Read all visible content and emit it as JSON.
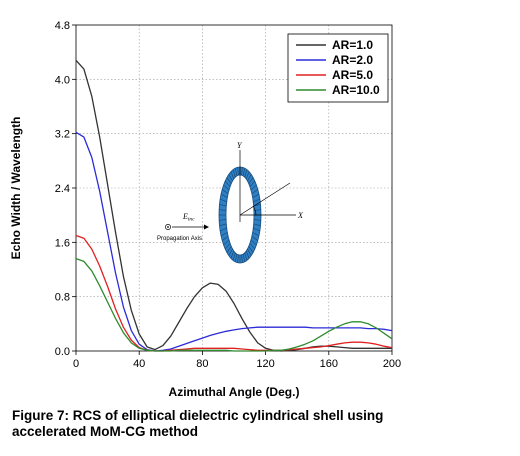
{
  "chart_data": {
    "type": "line",
    "title": "",
    "xlabel": "Azimuthal Angle (Deg.)",
    "ylabel": "Echo Width / Wavelength",
    "xlim": [
      0,
      200
    ],
    "ylim": [
      0,
      4.8
    ],
    "xticks": [
      0,
      40,
      80,
      120,
      160,
      200
    ],
    "yticks": [
      0.0,
      0.8,
      1.6,
      2.4,
      3.2,
      4.0,
      4.8
    ],
    "xtick_labels": [
      "0",
      "40",
      "80",
      "120",
      "160",
      "200"
    ],
    "ytick_labels": [
      "0.0",
      "0.8",
      "1.6",
      "2.4",
      "3.2",
      "4.0",
      "4.8"
    ],
    "grid": "dotted",
    "legend_position": "top-right",
    "x": [
      0,
      5,
      10,
      15,
      20,
      25,
      30,
      35,
      40,
      45,
      50,
      55,
      60,
      65,
      70,
      75,
      80,
      85,
      90,
      95,
      100,
      105,
      110,
      115,
      120,
      125,
      130,
      135,
      140,
      145,
      150,
      155,
      160,
      165,
      170,
      175,
      180,
      185,
      190,
      195,
      200
    ],
    "series": [
      {
        "name": "AR=1.0",
        "color": "#333333",
        "values": [
          4.28,
          4.15,
          3.75,
          3.15,
          2.45,
          1.75,
          1.1,
          0.6,
          0.25,
          0.06,
          0.02,
          0.08,
          0.22,
          0.42,
          0.62,
          0.8,
          0.93,
          1.0,
          0.98,
          0.88,
          0.7,
          0.48,
          0.28,
          0.12,
          0.04,
          0.01,
          0.0,
          0.01,
          0.02,
          0.04,
          0.06,
          0.07,
          0.07,
          0.06,
          0.05,
          0.04,
          0.04,
          0.04,
          0.04,
          0.04,
          0.04
        ]
      },
      {
        "name": "AR=2.0",
        "color": "#2b2bd9",
        "values": [
          3.22,
          3.15,
          2.85,
          2.35,
          1.75,
          1.15,
          0.65,
          0.3,
          0.1,
          0.02,
          0.0,
          0.01,
          0.03,
          0.07,
          0.11,
          0.15,
          0.19,
          0.23,
          0.26,
          0.29,
          0.31,
          0.33,
          0.34,
          0.35,
          0.35,
          0.35,
          0.35,
          0.35,
          0.35,
          0.35,
          0.34,
          0.34,
          0.34,
          0.34,
          0.34,
          0.34,
          0.34,
          0.33,
          0.33,
          0.32,
          0.3
        ]
      },
      {
        "name": "AR=5.0",
        "color": "#e02020",
        "values": [
          1.7,
          1.66,
          1.5,
          1.25,
          0.95,
          0.62,
          0.35,
          0.16,
          0.05,
          0.01,
          0.0,
          0.0,
          0.01,
          0.02,
          0.03,
          0.04,
          0.04,
          0.04,
          0.04,
          0.04,
          0.04,
          0.03,
          0.02,
          0.01,
          0.01,
          0.01,
          0.01,
          0.02,
          0.03,
          0.04,
          0.05,
          0.06,
          0.08,
          0.1,
          0.12,
          0.13,
          0.13,
          0.12,
          0.1,
          0.07,
          0.05
        ]
      },
      {
        "name": "AR=10.0",
        "color": "#2e8b2e",
        "values": [
          1.36,
          1.32,
          1.18,
          0.96,
          0.72,
          0.48,
          0.27,
          0.12,
          0.04,
          0.01,
          0.0,
          0.0,
          0.0,
          0.01,
          0.01,
          0.01,
          0.01,
          0.01,
          0.01,
          0.01,
          0.0,
          0.0,
          0.0,
          0.0,
          0.0,
          0.01,
          0.01,
          0.03,
          0.06,
          0.1,
          0.15,
          0.22,
          0.29,
          0.35,
          0.4,
          0.43,
          0.43,
          0.4,
          0.34,
          0.26,
          0.18
        ]
      }
    ]
  },
  "inset": {
    "y_axis_label": "Y",
    "x_axis_label": "X",
    "field_label": "E",
    "field_subscript": "inc",
    "propagation_label": "Propagation Axis"
  },
  "caption": {
    "line1": "Figure 7: RCS of elliptical dielectric cylindrical shell using",
    "line2": "accelerated MoM-CG method"
  }
}
